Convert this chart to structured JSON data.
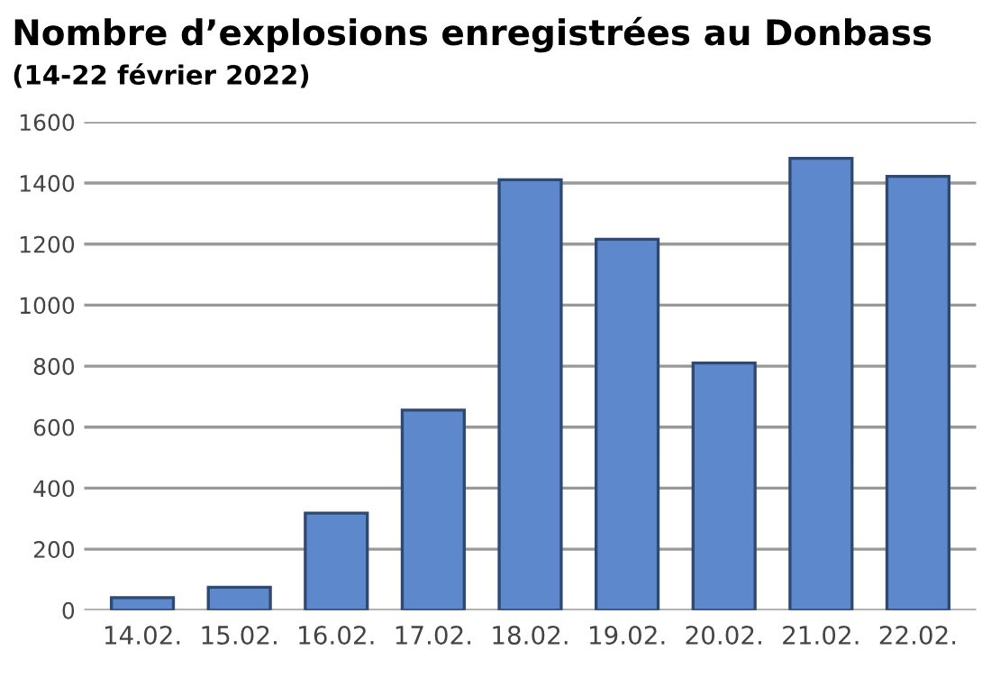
{
  "chart_data": {
    "type": "bar",
    "title": "Nombre d’explosions enregistrées au Donbass",
    "subtitle": "(14-22 février 2022)",
    "categories": [
      "14.02.",
      "15.02.",
      "16.02.",
      "17.02.",
      "18.02.",
      "19.02.",
      "20.02.",
      "21.02.",
      "22.02."
    ],
    "values": [
      41,
      75,
      318,
      656,
      1411,
      1216,
      810,
      1481,
      1422
    ],
    "color": "#5d88cc",
    "ylim": [
      0,
      1600
    ],
    "yticks": [
      0,
      200,
      400,
      600,
      800,
      1000,
      1200,
      1400,
      1600
    ],
    "grid": "y"
  }
}
